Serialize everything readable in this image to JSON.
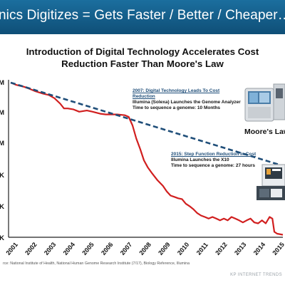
{
  "header": {
    "title": "nics Digitizes = Gets Faster / Better / Cheaper…"
  },
  "colors": {
    "header": "#135c8a",
    "red_series": "#d11f1f",
    "moore_line": "#1f4e79"
  },
  "chart_data": {
    "type": "line",
    "title_lines": [
      "Introduction of Digital Technology Accelerates Cost",
      "Reduction Faster Than Moore's Law"
    ],
    "xlabel": "",
    "ylabel": "",
    "x_ticks": [
      "2001",
      "2002",
      "2003",
      "2004",
      "2005",
      "2006",
      "2007",
      "2008",
      "2009",
      "2010",
      "2011",
      "2012",
      "2013",
      "2014",
      "2015"
    ],
    "y_tick_labels": [
      "M",
      "M",
      "M",
      "K",
      "K",
      "K"
    ],
    "y_scale": "log",
    "grid": false,
    "series": [
      {
        "color": "#d11f1f",
        "style": "solid",
        "x": [
          2001.0,
          2001.3,
          2001.7,
          2002.0,
          2002.3,
          2002.7,
          2003.0,
          2003.3,
          2003.6,
          2003.8,
          2004.0,
          2004.3,
          2004.6,
          2005.0,
          2005.3,
          2005.7,
          2006.0,
          2006.3,
          2006.6,
          2007.0,
          2007.2,
          2007.4,
          2007.6,
          2007.8,
          2008.0,
          2008.2,
          2008.4,
          2008.7,
          2009.0,
          2009.2,
          2009.4,
          2009.6,
          2009.8,
          2010.0,
          2010.2,
          2010.4,
          2010.6,
          2010.8,
          2011.0,
          2011.2,
          2011.4,
          2011.6,
          2011.8,
          2012.0,
          2012.2,
          2012.4,
          2012.6,
          2012.8,
          2013.0,
          2013.2,
          2013.4,
          2013.6,
          2013.8,
          2014.0,
          2014.2,
          2014.4,
          2014.6,
          2014.75,
          2014.85,
          2015.0,
          2015.3
        ],
        "y": [
          95000000,
          80000000,
          70000000,
          60000000,
          50000000,
          42000000,
          38000000,
          30000000,
          20000000,
          14000000,
          14000000,
          13000000,
          11000000,
          12000000,
          11000000,
          9500000,
          9000000,
          9000000,
          9000000,
          8500000,
          7500000,
          4000000,
          1500000,
          700000,
          300000,
          180000,
          120000,
          70000,
          45000,
          30000,
          22000,
          20000,
          18000,
          17000,
          12000,
          10000,
          8000,
          6000,
          5000,
          4500,
          4000,
          4500,
          4000,
          3500,
          4000,
          3500,
          4500,
          4000,
          3500,
          3000,
          3500,
          4000,
          3000,
          2800,
          3500,
          2800,
          4500,
          4000,
          1500,
          1300,
          1200
        ]
      },
      {
        "name": "Moore's Law",
        "color": "#1f4e79",
        "style": "dashed",
        "x": [
          2001.0,
          2015.3
        ],
        "y": [
          95000000,
          200000
        ]
      }
    ],
    "annotations": [
      {
        "heading": "2007: Digital Technology Leads To Cost Reduction",
        "heading_lines": [
          "2007: Digital Technology Leads To Cost",
          "Reduction"
        ],
        "lines": [
          "Illumina (Solexa) Launches the Genome Analyzer",
          "Time to sequence a genome: 10 Months"
        ]
      },
      {
        "heading": "2015: Step Function Reduction In Cost",
        "lines": [
          "Illumina Launches the X10",
          "Time to sequence a genome: 27 hours"
        ]
      }
    ],
    "source": "rce: National Institute of Health, National Human Genome Research Institute (7/17), Biology Reference, Illumina"
  },
  "footer": {
    "label": "KP INTERNET TRENDS"
  }
}
